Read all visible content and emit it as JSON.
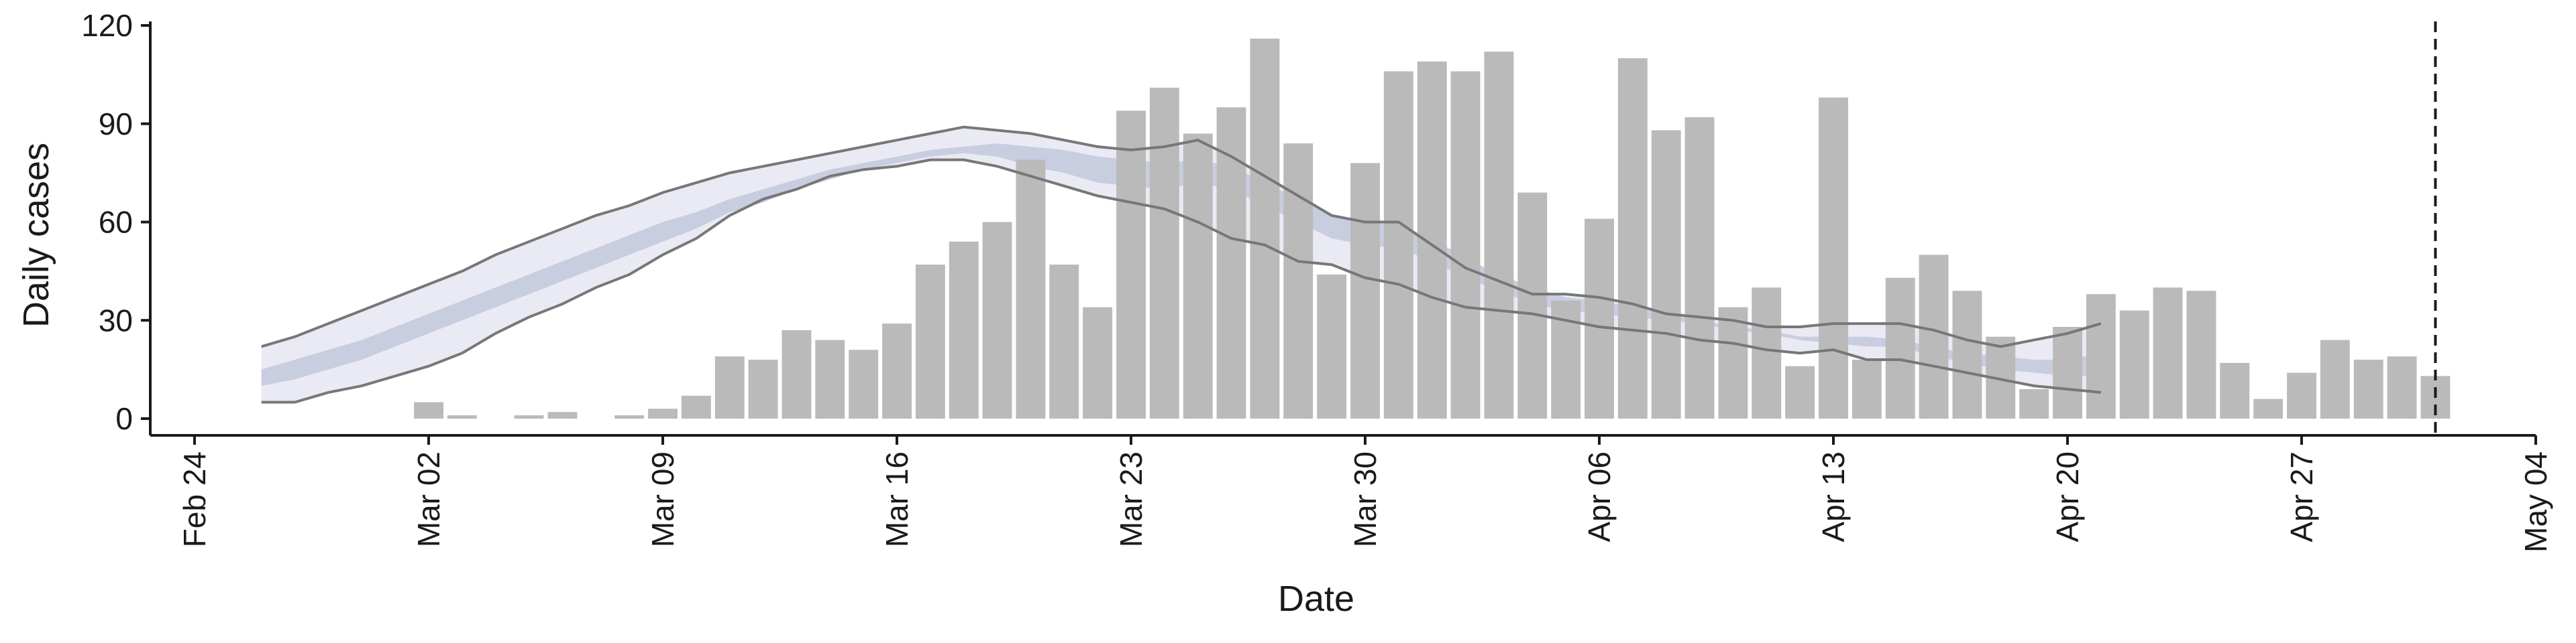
{
  "chart_data": {
    "type": "bar",
    "title": "",
    "xlabel": "Date",
    "ylabel": "Daily cases",
    "ylim": [
      0,
      120
    ],
    "y_ticks": [
      0,
      30,
      60,
      90,
      120
    ],
    "x_range": [
      "2020-02-24",
      "2020-05-04"
    ],
    "x_ticks": [
      {
        "date": "2020-02-24",
        "label": "Feb 24"
      },
      {
        "date": "2020-03-02",
        "label": "Mar 02"
      },
      {
        "date": "2020-03-09",
        "label": "Mar 09"
      },
      {
        "date": "2020-03-16",
        "label": "Mar 16"
      },
      {
        "date": "2020-03-23",
        "label": "Mar 23"
      },
      {
        "date": "2020-03-30",
        "label": "Mar 30"
      },
      {
        "date": "2020-04-06",
        "label": "Apr 06"
      },
      {
        "date": "2020-04-13",
        "label": "Apr 13"
      },
      {
        "date": "2020-04-20",
        "label": "Apr 20"
      },
      {
        "date": "2020-04-27",
        "label": "Apr 27"
      },
      {
        "date": "2020-05-04",
        "label": "May 04"
      }
    ],
    "bars": {
      "start_date": "2020-03-02",
      "values": [
        5,
        1,
        0,
        1,
        2,
        0,
        1,
        3,
        7,
        19,
        18,
        27,
        24,
        21,
        29,
        47,
        54,
        60,
        79,
        47,
        34,
        94,
        101,
        87,
        95,
        116,
        84,
        44,
        78,
        106,
        109,
        106,
        112,
        69,
        36,
        61,
        110,
        88,
        92,
        34,
        40,
        16,
        98,
        18,
        43,
        50,
        39,
        25,
        9,
        28,
        38,
        33,
        40,
        39,
        17,
        6,
        14,
        24,
        18,
        19,
        13
      ]
    },
    "band_start_date": "2020-02-26",
    "outer_upper": [
      22,
      25,
      29,
      33,
      37,
      41,
      45,
      50,
      54,
      58,
      62,
      65,
      69,
      72,
      75,
      77,
      79,
      81,
      83,
      85,
      87,
      89,
      88,
      87,
      85,
      83,
      82,
      83,
      85,
      80,
      74,
      68,
      62,
      60,
      60,
      53,
      46,
      42,
      38,
      38,
      37,
      35,
      32,
      31,
      30,
      28,
      28,
      29,
      29,
      29,
      27,
      24,
      22,
      24,
      26,
      29
    ],
    "outer_lower": [
      5,
      5,
      8,
      10,
      13,
      16,
      20,
      26,
      31,
      35,
      40,
      44,
      50,
      55,
      62,
      67,
      70,
      74,
      76,
      77,
      79,
      79,
      77,
      74,
      71,
      68,
      66,
      64,
      60,
      55,
      53,
      48,
      47,
      43,
      41,
      37,
      34,
      33,
      32,
      30,
      28,
      27,
      26,
      24,
      23,
      21,
      20,
      21,
      18,
      18,
      16,
      14,
      12,
      10,
      9,
      8
    ],
    "inner_upper": [
      15,
      18,
      21,
      24,
      28,
      32,
      36,
      40,
      44,
      48,
      52,
      56,
      60,
      63,
      67,
      70,
      73,
      76,
      78,
      80,
      82,
      83,
      84,
      83,
      82,
      80,
      79,
      78,
      79,
      77,
      72,
      67,
      62,
      60,
      59,
      55,
      49,
      44,
      40,
      37,
      36,
      34,
      32,
      30,
      28,
      27,
      25,
      25,
      25,
      24,
      22,
      20,
      19,
      18,
      18,
      20
    ],
    "inner_lower": [
      10,
      12,
      15,
      18,
      22,
      26,
      30,
      34,
      38,
      42,
      46,
      50,
      54,
      58,
      63,
      66,
      70,
      73,
      76,
      78,
      80,
      81,
      80,
      77,
      75,
      72,
      71,
      70,
      72,
      70,
      65,
      60,
      55,
      53,
      52,
      48,
      43,
      39,
      35,
      33,
      32,
      31,
      30,
      29,
      27,
      26,
      24,
      23,
      22,
      22,
      19,
      17,
      15,
      14,
      13,
      13
    ],
    "event_line_date": "2020-05-01",
    "colors": {
      "bars": "#bababa",
      "band_outer": "#e9eaf3",
      "band_inner": "#c8cde0",
      "interval_lines": "#777777",
      "event_line": "#1a1a1a",
      "axis": "#1a1a1a"
    }
  }
}
